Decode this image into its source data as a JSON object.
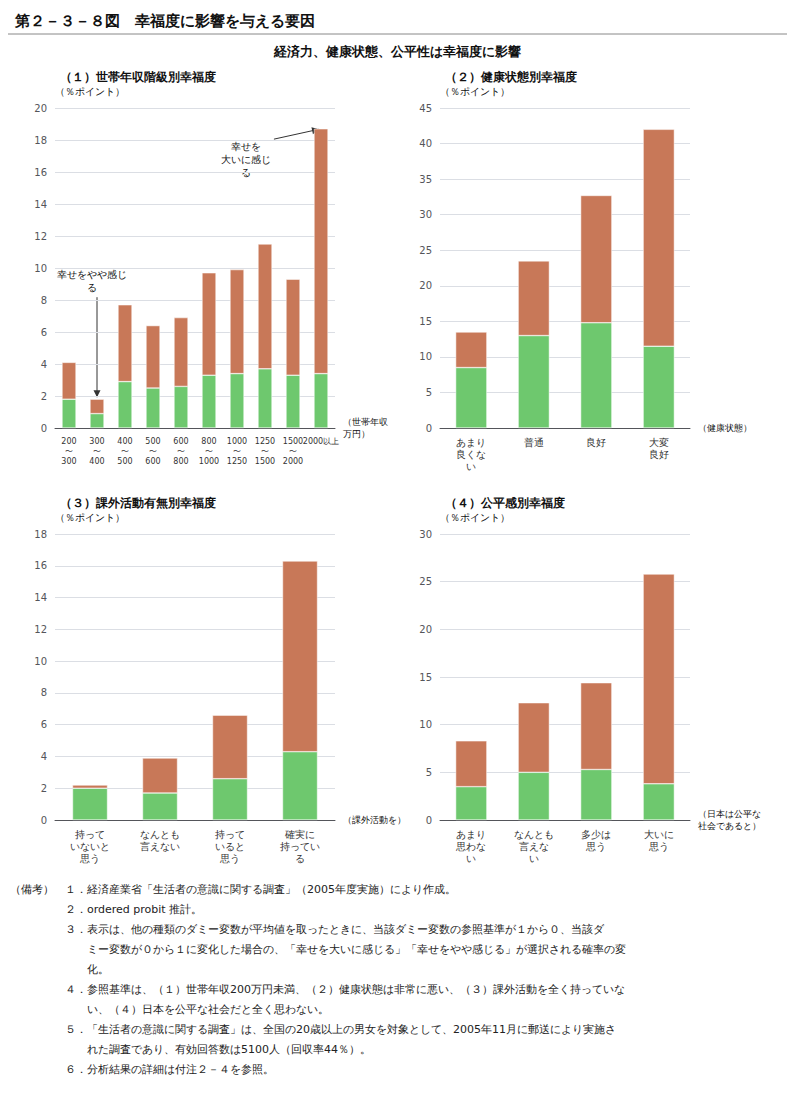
{
  "title": "第２－３－８図　幸福度に影響を与える要因",
  "subtitle": "経済力、健康状態、公平性は幸福度に影響",
  "notes": [
    "（備考）　１．経済産業省「生活者の意識に関する調査」（2005年度実施）により作成。",
    "　　　　　２．ordered probit 推計。",
    "　　　　　３．表示は、他の種類のダミー変数が平均値を取ったときに、当該ダミー変数の参照基準が１から０、当該ダ",
    "　　　　　　　ミー変数が０から１に変化した場合の、「幸せを大いに感じる」「幸せをやや感じる」が選択される確率の変",
    "　　　　　　　化。",
    "　　　　　４．参照基準は、（１）世帯年収200万円未満、（２）健康状態は非常に悪い、（３）課外活動を全く持っていな",
    "　　　　　　　い、（４）日本を公平な社会だと全く思わない。",
    "　　　　　５．「生活者の意識に関する調査」は、全国の20歳以上の男女を対象として、2005年11月に郵送により実施さ",
    "　　　　　　　れた調査であり、有効回答数は5100人（回収率44％）。",
    "　　　　　６．分析結果の詳細は付注２－４を参照。"
  ],
  "chart_data": [
    {
      "type": "bar",
      "stacked": true,
      "grid": true,
      "title": "（１）世帯年収階級別幸福度",
      "ylabel": "（％ポイント）",
      "xlabel": "（世帯年収\n万円）",
      "categories": [
        "200\n〜\n300",
        "300\n〜\n400",
        "400\n〜\n500",
        "500\n〜\n600",
        "600\n〜\n800",
        "800\n〜\n1000",
        "1000\n〜\n1250",
        "1250\n〜\n1500",
        "1500\n〜\n2000",
        "2000以上"
      ],
      "series": [
        {
          "color": "#6ec86e",
          "values": [
            1.8,
            0.9,
            2.9,
            2.5,
            2.6,
            3.3,
            3.4,
            3.7,
            3.3,
            3.4
          ]
        },
        {
          "color": "#c87858",
          "values": [
            2.3,
            0.9,
            4.8,
            3.9,
            4.3,
            6.4,
            6.5,
            7.8,
            6.0,
            15.3
          ]
        }
      ],
      "ylim": [
        0,
        20
      ],
      "yticks": [
        0,
        2,
        4,
        6,
        8,
        10,
        12,
        14,
        16,
        18,
        20
      ],
      "annotations": [
        {
          "text": "幸せをやや感じ\nる",
          "x": "300\n〜\n400",
          "y": 1.8
        },
        {
          "text": "幸せを\n大いに感じ\nる",
          "x": "2000以上",
          "y": 18.7
        }
      ]
    },
    {
      "type": "bar",
      "stacked": true,
      "grid": true,
      "title": "（２）健康状態別幸福度",
      "ylabel": "（％ポイント）",
      "xlabel": "（健康状態）",
      "categories": [
        "あまり\n良くな\nい",
        "普通",
        "良好",
        "大変\n良好"
      ],
      "series": [
        {
          "color": "#6ec86e",
          "values": [
            8.5,
            13.0,
            14.8,
            11.5
          ]
        },
        {
          "color": "#c87858",
          "values": [
            5.0,
            10.5,
            17.9,
            30.5
          ]
        }
      ],
      "ylim": [
        0,
        45
      ],
      "yticks": [
        0,
        5,
        10,
        15,
        20,
        25,
        30,
        35,
        40,
        45
      ]
    },
    {
      "type": "bar",
      "stacked": true,
      "grid": true,
      "title": "（３）課外活動有無別幸福度",
      "ylabel": "（％ポイント）",
      "xlabel": "（課外活動を）",
      "categories": [
        "持って\nいないと\n思う",
        "なんとも\n言えない",
        "持って\nいると\n思う",
        "確実に\n持ってい\nる"
      ],
      "series": [
        {
          "color": "#6ec86e",
          "values": [
            2.0,
            1.7,
            2.6,
            4.3
          ]
        },
        {
          "color": "#c87858",
          "values": [
            0.2,
            2.2,
            4.0,
            12.0
          ]
        }
      ],
      "ylim": [
        0,
        18
      ],
      "yticks": [
        0,
        2,
        4,
        6,
        8,
        10,
        12,
        14,
        16,
        18
      ]
    },
    {
      "type": "bar",
      "stacked": true,
      "grid": true,
      "title": "（４）公平感別幸福度",
      "ylabel": "（％ポイント）",
      "xlabel": "（日本は公平な\n社会であると）",
      "categories": [
        "あまり\n思わな\nい",
        "なんとも\n言えな\nい",
        "多少は\n思う",
        "大いに\n思う"
      ],
      "series": [
        {
          "color": "#6ec86e",
          "values": [
            3.5,
            5.0,
            5.3,
            3.8
          ]
        },
        {
          "color": "#c87858",
          "values": [
            4.8,
            7.3,
            9.1,
            22.0
          ]
        }
      ],
      "ylim": [
        0,
        30
      ],
      "yticks": [
        0,
        5,
        10,
        15,
        20,
        25,
        30
      ]
    }
  ]
}
